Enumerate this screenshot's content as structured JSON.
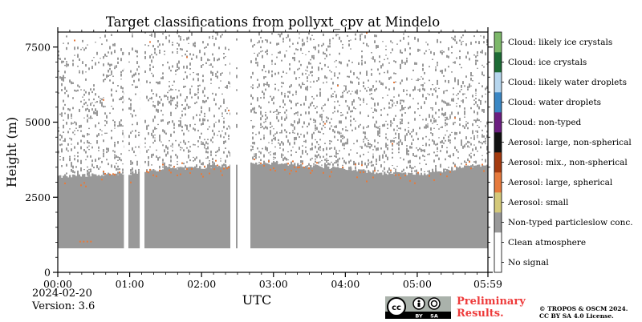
{
  "chart_data": {
    "type": "heatmap",
    "title": "Target classifications from pollyxt_cpv at Mindelo",
    "xlabel": "UTC",
    "ylabel": "Height (m)",
    "x_ticks": [
      "00:00",
      "01:00",
      "02:00",
      "03:00",
      "04:00",
      "05:00",
      "05:59"
    ],
    "x_range_hours": [
      0,
      5.983
    ],
    "y_ticks": [
      0,
      2500,
      5000,
      7500
    ],
    "ylim": [
      0,
      8000
    ],
    "date": "2024-02-20",
    "version": "Version: 3.6",
    "lowest_signal_height_m": 800,
    "data_gaps_hours": [
      [
        0.92,
        0.97
      ],
      [
        1.14,
        1.19
      ],
      [
        2.4,
        2.46
      ],
      [
        2.5,
        2.67
      ]
    ],
    "aerosol_layer_top_profile": [
      [
        0.0,
        3200
      ],
      [
        0.5,
        3250
      ],
      [
        1.0,
        3300
      ],
      [
        1.5,
        3450
      ],
      [
        2.0,
        3500
      ],
      [
        2.5,
        3550
      ],
      [
        2.67,
        3600
      ],
      [
        3.0,
        3650
      ],
      [
        3.5,
        3550
      ],
      [
        4.0,
        3450
      ],
      [
        4.5,
        3300
      ],
      [
        5.0,
        3250
      ],
      [
        5.5,
        3450
      ],
      [
        5.98,
        3600
      ]
    ],
    "colorbar": {
      "position": "right",
      "classes": [
        {
          "label": "No signal",
          "color": "#ffffff"
        },
        {
          "label": "Clean atmosphere",
          "color": "#ffffff"
        },
        {
          "label": "Non-typed particleslow conc.",
          "color": "#999999"
        },
        {
          "label": "Aerosol: small",
          "color": "#d4c97a"
        },
        {
          "label": "Aerosol: large, spherical",
          "color": "#e67a3c"
        },
        {
          "label": "Aerosol: mix., non-spherical",
          "color": "#a33a0f"
        },
        {
          "label": "Aerosol: large, non-spherical",
          "color": "#111111"
        },
        {
          "label": "Cloud: non-typed",
          "color": "#6b1e80"
        },
        {
          "label": "Cloud: water droplets",
          "color": "#3a87c4"
        },
        {
          "label": "Cloud: likely water droplets",
          "color": "#b6d6ee"
        },
        {
          "label": "Cloud: ice crystals",
          "color": "#1d6b35"
        },
        {
          "label": "Cloud: likely ice crystals",
          "color": "#7db86a"
        }
      ]
    }
  },
  "badge": {
    "cc": "cc",
    "by": "BY",
    "sa": "SA"
  },
  "preliminary": {
    "line1": "Preliminary",
    "line2": "Results."
  },
  "copyright": {
    "line1": "© TROPOS & OSCM 2024.",
    "line2": "CC BY SA 4.0 License."
  }
}
